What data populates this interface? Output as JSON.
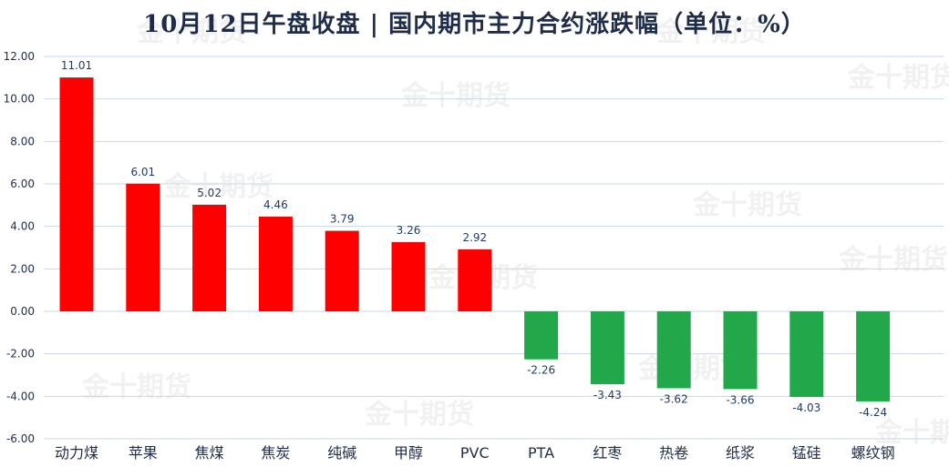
{
  "title": "10月12日午盘收盘 | 国内期市主力合约涨跌幅（单位：%）",
  "watermark": "金十期货",
  "colors": {
    "up": "#ff0000",
    "down": "#22a84a",
    "grid": "#c8d6e6",
    "tick_text": "#1f2d4a",
    "label_text": "#1f3a6a"
  },
  "chart_data": {
    "type": "bar",
    "title": "10月12日午盘收盘 | 国内期市主力合约涨跌幅（单位：%）",
    "categories": [
      "动力煤",
      "苹果",
      "焦煤",
      "焦炭",
      "纯碱",
      "甲醇",
      "PVC",
      "PTA",
      "红枣",
      "热卷",
      "纸浆",
      "锰硅",
      "螺纹钢"
    ],
    "values": [
      11.01,
      6.01,
      5.02,
      4.46,
      3.79,
      3.26,
      2.92,
      -2.26,
      -3.43,
      -3.62,
      -3.66,
      -4.03,
      -4.24
    ],
    "value_labels": [
      "11.01",
      "6.01",
      "5.02",
      "4.46",
      "3.79",
      "3.26",
      "2.92",
      "-2.26",
      "-3.43",
      "-3.62",
      "-3.66",
      "-4.03",
      "-4.24"
    ],
    "ylim": [
      -6,
      12
    ],
    "yticks": [
      "12.00",
      "10.00",
      "8.00",
      "6.00",
      "4.00",
      "2.00",
      "0.00",
      "-2.00",
      "-4.00",
      "-6.00"
    ],
    "ytick_values": [
      12,
      10,
      8,
      6,
      4,
      2,
      0,
      -2,
      -4,
      -6
    ],
    "grid": true,
    "xlabel": "",
    "ylabel": ""
  }
}
